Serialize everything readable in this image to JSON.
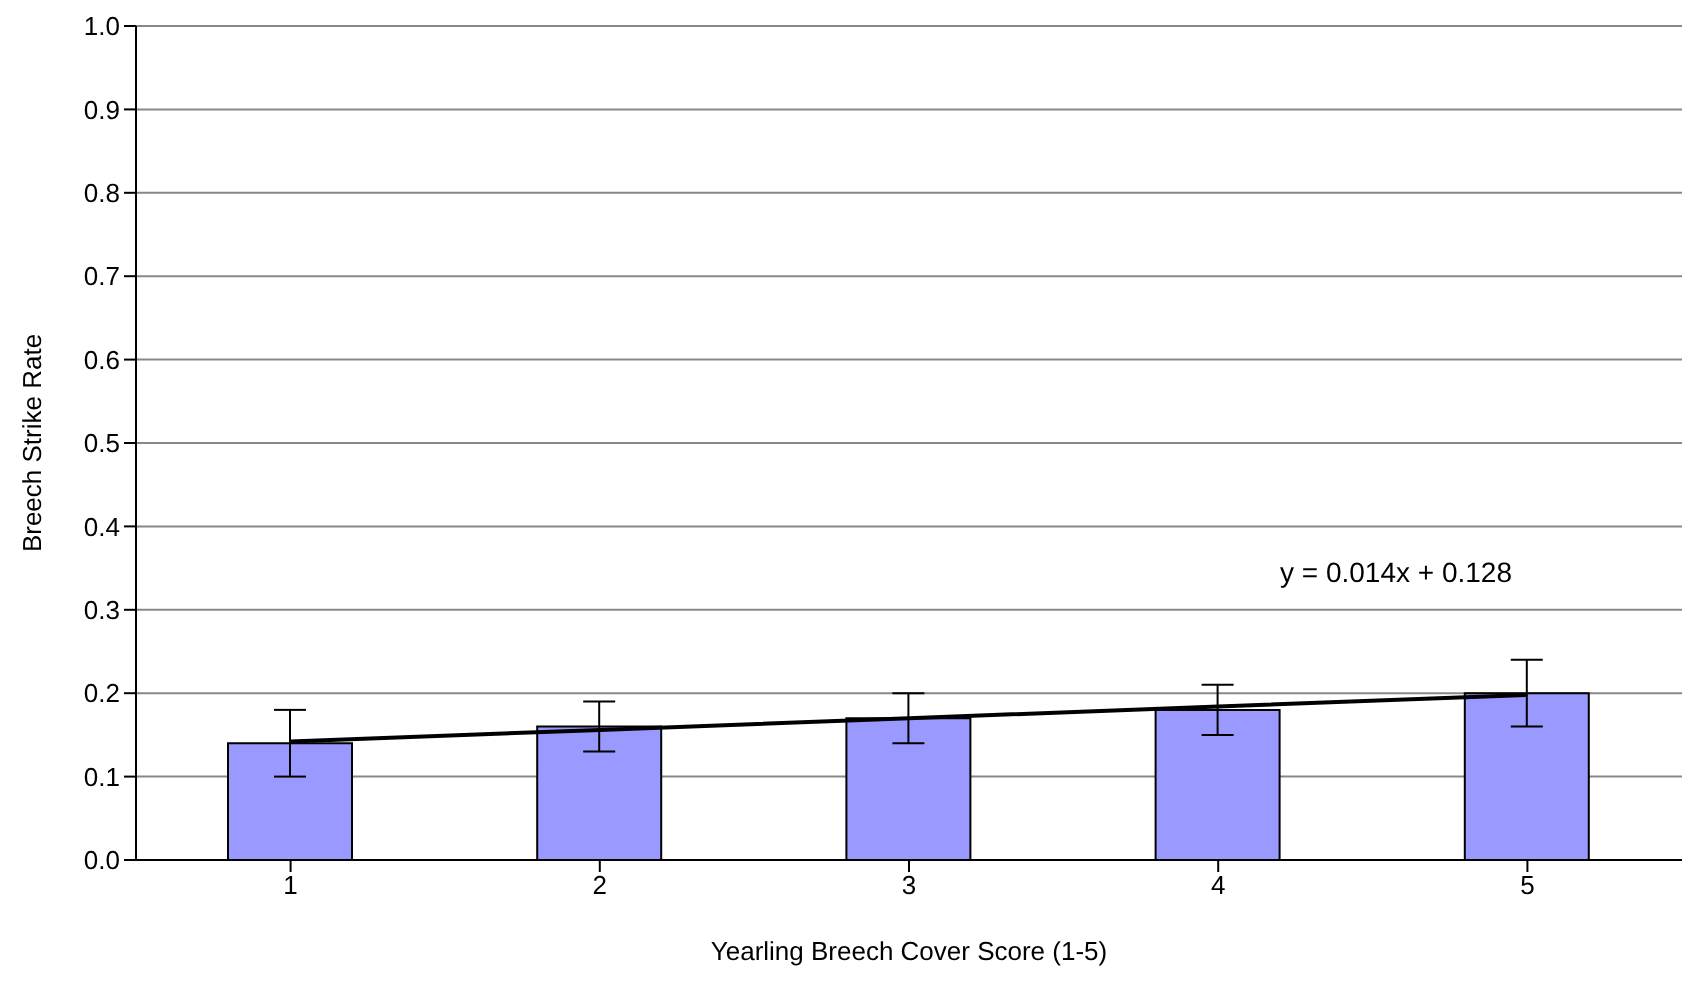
{
  "chart_data": {
    "type": "bar",
    "xlabel": "Yearling Breech Cover Score (1-5)",
    "ylabel": "Breech Strike Rate",
    "categories": [
      "1",
      "2",
      "3",
      "4",
      "5"
    ],
    "series": [
      {
        "color": "#9999ff",
        "values": [
          0.14,
          0.16,
          0.17,
          0.18,
          0.2
        ],
        "errors": [
          0.04,
          0.03,
          0.03,
          0.03,
          0.04
        ]
      },
      {
        "type": "line",
        "color": "#000000",
        "x": [
          "1",
          "2",
          "3",
          "4",
          "5"
        ],
        "values": [
          0.142,
          0.156,
          0.17,
          0.184,
          0.198
        ]
      }
    ],
    "ylim": [
      0,
      1
    ],
    "yticks": [
      {
        "value": 0,
        "label": "0.0"
      },
      0.1,
      0.2,
      0.3,
      0.4,
      0.5,
      0.6,
      0.7,
      0.8,
      0.9,
      {
        "value": 1,
        "label": "1.0"
      }
    ],
    "grid": "y",
    "legend": false,
    "marker": "none",
    "annotations": [
      "y = 0.014x + 0.128"
    ]
  }
}
